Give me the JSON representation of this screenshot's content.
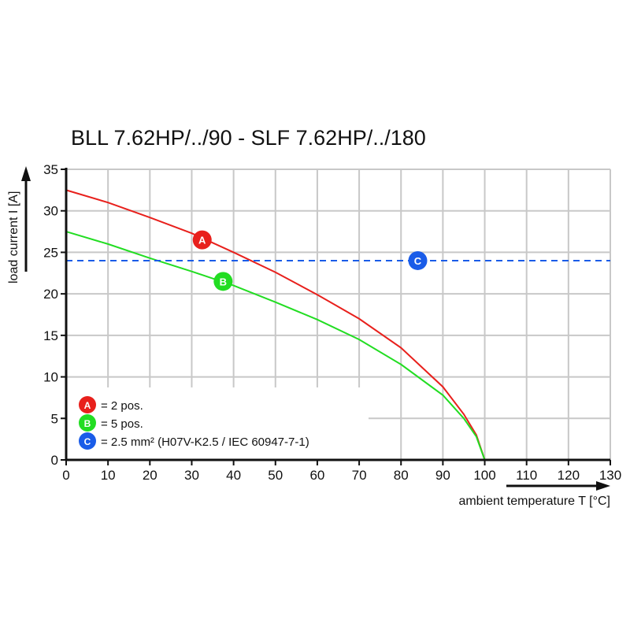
{
  "chart_data": {
    "type": "line",
    "title": "BLL 7.62HP/../90 - SLF 7.62HP/../180",
    "xlabel": "ambient temperature T [°C]",
    "ylabel": "load current I [A]",
    "xlim": [
      0,
      130
    ],
    "ylim": [
      0,
      35
    ],
    "xticks": [
      0,
      10,
      20,
      30,
      40,
      50,
      60,
      70,
      80,
      90,
      100,
      110,
      120,
      130
    ],
    "yticks": [
      0,
      5,
      10,
      15,
      20,
      25,
      30,
      35
    ],
    "grid": true,
    "series": [
      {
        "name": "A",
        "label": "= 2 pos.",
        "color": "#e8201c",
        "marker_at": [
          32.5,
          26.5
        ],
        "x": [
          0,
          10,
          20,
          30,
          40,
          50,
          60,
          70,
          80,
          90,
          95,
          98,
          100
        ],
        "y": [
          32.5,
          31,
          29.2,
          27.3,
          25,
          22.6,
          19.9,
          17,
          13.5,
          8.8,
          5.5,
          3,
          0
        ]
      },
      {
        "name": "B",
        "label": "= 5 pos.",
        "color": "#22dd22",
        "marker_at": [
          37.5,
          21.5
        ],
        "x": [
          0,
          10,
          20,
          30,
          40,
          50,
          60,
          70,
          80,
          90,
          95,
          98,
          100
        ],
        "y": [
          27.5,
          26,
          24.3,
          22.7,
          21,
          19,
          16.9,
          14.5,
          11.5,
          7.8,
          5,
          2.8,
          0
        ]
      },
      {
        "name": "C",
        "label": "= 2.5 mm² (H07V-K2.5 / IEC 60947-7-1)",
        "color": "#1a5ce8",
        "dashed": true,
        "marker_at": [
          84,
          24
        ],
        "x": [
          0,
          130
        ],
        "y": [
          24,
          24
        ]
      }
    ]
  }
}
